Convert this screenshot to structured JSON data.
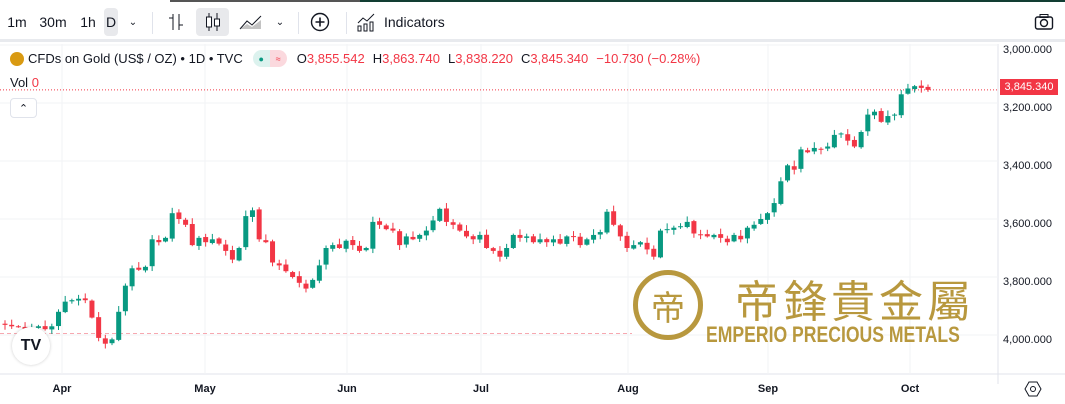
{
  "toolbar": {
    "intervals": [
      "1m",
      "30m",
      "1h",
      "D"
    ],
    "indicators_label": "Indicators",
    "icons": [
      "chevron-down-icon",
      "bar-chart-icon",
      "candles-icon",
      "area-chart-icon",
      "add-compare-icon",
      "indicators-icon",
      "camera-icon"
    ]
  },
  "legend": {
    "symbol": "CFDs on Gold (US$ / OZ) • 1D • TVC",
    "open_label": "O",
    "open": "3,855.542",
    "high_label": "H",
    "high": "3,863.740",
    "low_label": "L",
    "low": "3,838.220",
    "close_label": "C",
    "close": "3,845.340",
    "change": "−10.730 (−0.28%)",
    "vol_label": "Vol",
    "vol": "0"
  },
  "price_axis": {
    "ticks": [
      "4,000.000",
      "3,800.000",
      "3,600.000",
      "3,400.000",
      "3,200.000",
      "3,000.000"
    ],
    "current": "3,845.340"
  },
  "time_axis": {
    "months": [
      "Apr",
      "May",
      "Jun",
      "Jul",
      "Aug",
      "Sep",
      "Oct"
    ]
  },
  "watermark": {
    "chinese": "帝鋒貴金屬",
    "english": "EMPERIO PRECIOUS METALS",
    "logo_glyph": "帝"
  },
  "tv_logo": "TV",
  "colors": {
    "up": "#089981",
    "down": "#f23645",
    "gold": "#b8983e"
  },
  "chart_data": {
    "type": "candlestick",
    "title": "CFDs on Gold (US$ / OZ) 1D TVC",
    "ylim": [
      2900,
      4050
    ],
    "yticks": [
      3000,
      3200,
      3400,
      3600,
      3800,
      4000
    ],
    "last_candle": {
      "open": 3855.542,
      "high": 3863.74,
      "low": 3838.22,
      "close": 3845.34
    },
    "closes": [
      3035,
      3030,
      3028,
      3020,
      3025,
      3030,
      3020,
      3030,
      3080,
      3115,
      3120,
      3125,
      3120,
      3060,
      2990,
      2970,
      2985,
      3080,
      3170,
      3230,
      3225,
      3235,
      3330,
      3320,
      3335,
      3420,
      3400,
      3380,
      3310,
      3335,
      3320,
      3330,
      3315,
      3290,
      3260,
      3300,
      3410,
      3430,
      3330,
      3320,
      3250,
      3240,
      3220,
      3200,
      3180,
      3160,
      3190,
      3240,
      3300,
      3310,
      3300,
      3325,
      3310,
      3290,
      3300,
      3390,
      3380,
      3365,
      3360,
      3310,
      3340,
      3330,
      3345,
      3360,
      3395,
      3435,
      3390,
      3380,
      3360,
      3340,
      3330,
      3345,
      3300,
      3290,
      3270,
      3300,
      3345,
      3335,
      3340,
      3320,
      3330,
      3320,
      3330,
      3315,
      3340,
      3340,
      3310,
      3330,
      3345,
      3355,
      3425,
      3380,
      3340,
      3300,
      3310,
      3320,
      3295,
      3270,
      3360,
      3365,
      3370,
      3375,
      3390,
      3350,
      3345,
      3340,
      3345,
      3335,
      3320,
      3345,
      3330,
      3370,
      3380,
      3400,
      3420,
      3455,
      3530,
      3585,
      3570,
      3640,
      3630,
      3645,
      3640,
      3650,
      3690,
      3695,
      3670,
      3650,
      3700,
      3760,
      3770,
      3735,
      3755,
      3760,
      3830,
      3850,
      3858,
      3852,
      3855.542
    ]
  }
}
